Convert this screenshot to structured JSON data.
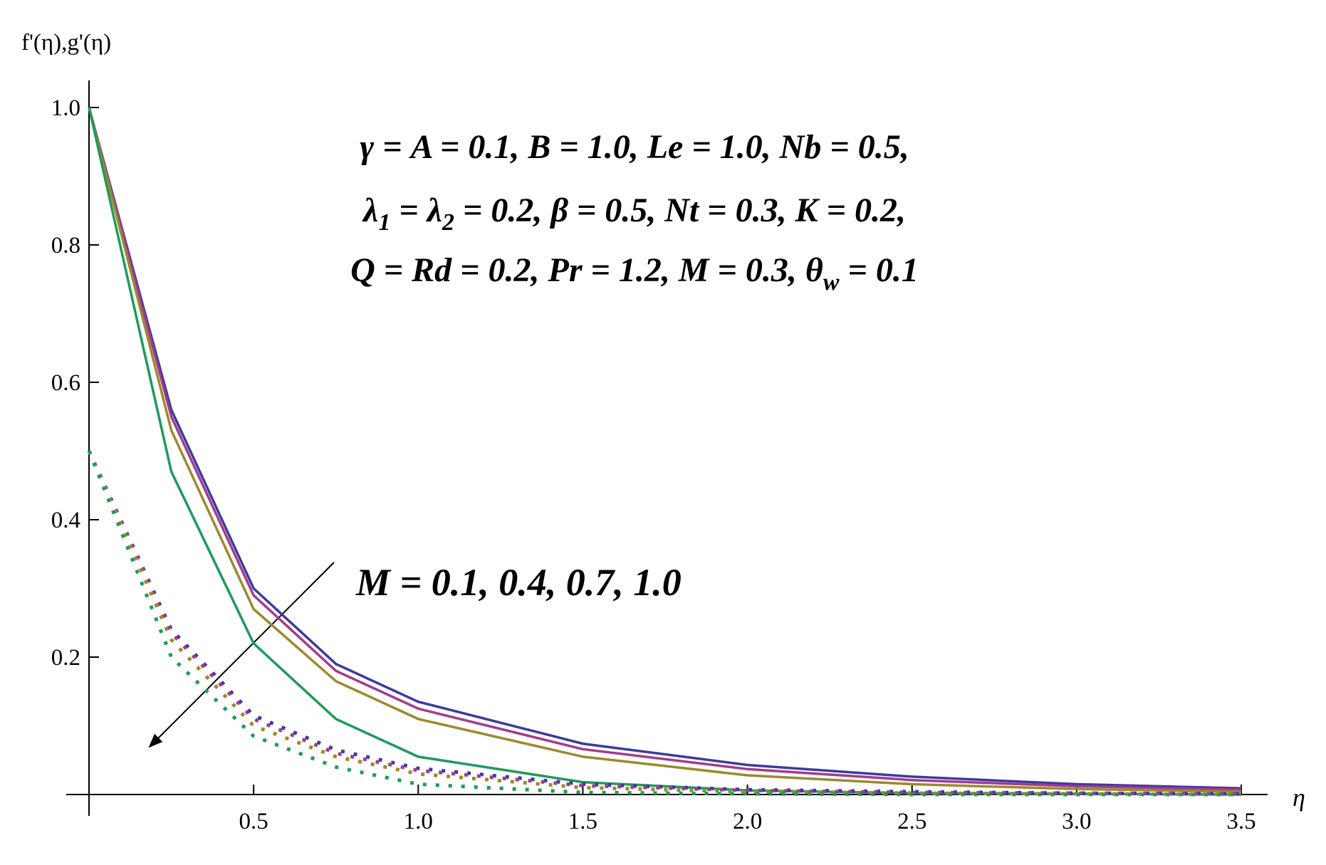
{
  "chart_data": {
    "type": "line",
    "y_label": "f'(η),g'(η)",
    "x_label": "η",
    "annotation_lines": [
      [
        "γ = A = 0.1, B = 1.0, Le = 1.0, Nb = 0.5,"
      ],
      [
        "λ",
        "1",
        " = λ",
        "2",
        " = 0.2, β = 0.5, Nt = 0.3, K = 0.2,"
      ],
      [
        "Q = Rd = 0.2, Pr = 1.2, M = 0.3, θ",
        "w",
        " = 0.1"
      ]
    ],
    "arrow_label": "M  =  0.1,  0.4,  0.7,  1.0",
    "x": [
      0,
      0.25,
      0.5,
      0.75,
      1.0,
      1.5,
      2.0,
      2.5,
      3.0,
      3.5
    ],
    "series": [
      {
        "color": "#3b3b9e",
        "style": "solid",
        "values": [
          1,
          0.56,
          0.3,
          0.19,
          0.135,
          0.074,
          0.043,
          0.026,
          0.015,
          0.009
        ]
      },
      {
        "color": "#a33b8c",
        "style": "solid",
        "values": [
          1,
          0.55,
          0.29,
          0.18,
          0.125,
          0.066,
          0.037,
          0.021,
          0.012,
          0.007
        ]
      },
      {
        "color": "#9a8a2e",
        "style": "solid",
        "values": [
          1,
          0.53,
          0.27,
          0.165,
          0.11,
          0.055,
          0.028,
          0.015,
          0.008,
          0.004
        ]
      },
      {
        "color": "#1e9a5c",
        "style": "solid",
        "values": [
          1,
          0.47,
          0.22,
          0.11,
          0.055,
          0.018,
          0.006,
          0.002,
          0.001,
          0
        ]
      },
      {
        "color": "#3b3b9e",
        "style": "dotted",
        "values": [
          0.5,
          0.24,
          0.115,
          0.065,
          0.038,
          0.015,
          0.007,
          0.004,
          0.002,
          0.001
        ]
      },
      {
        "color": "#a33b8c",
        "style": "dotted",
        "values": [
          0.5,
          0.235,
          0.11,
          0.06,
          0.035,
          0.013,
          0.006,
          0.003,
          0.002,
          0.001
        ]
      },
      {
        "color": "#9a8a2e",
        "style": "dotted",
        "values": [
          0.5,
          0.225,
          0.1,
          0.055,
          0.03,
          0.01,
          0.004,
          0.002,
          0.001,
          0
        ]
      },
      {
        "color": "#1e9a5c",
        "style": "dotted",
        "values": [
          0.5,
          0.2,
          0.085,
          0.04,
          0.015,
          0.003,
          0.001,
          0,
          0,
          0
        ]
      }
    ],
    "xlim": [
      0,
      3.58
    ],
    "ylim": [
      0,
      1.05
    ],
    "xticks": [
      0.5,
      {
        "value": 1,
        "label": "1.0"
      },
      1.5,
      {
        "value": 2,
        "label": "2.0"
      },
      2.5,
      {
        "value": 3,
        "label": "3.0"
      },
      3.5
    ],
    "yticks": [
      0.2,
      0.4,
      0.6,
      0.8,
      {
        "value": 1,
        "label": "1.0"
      }
    ],
    "grid": false
  }
}
